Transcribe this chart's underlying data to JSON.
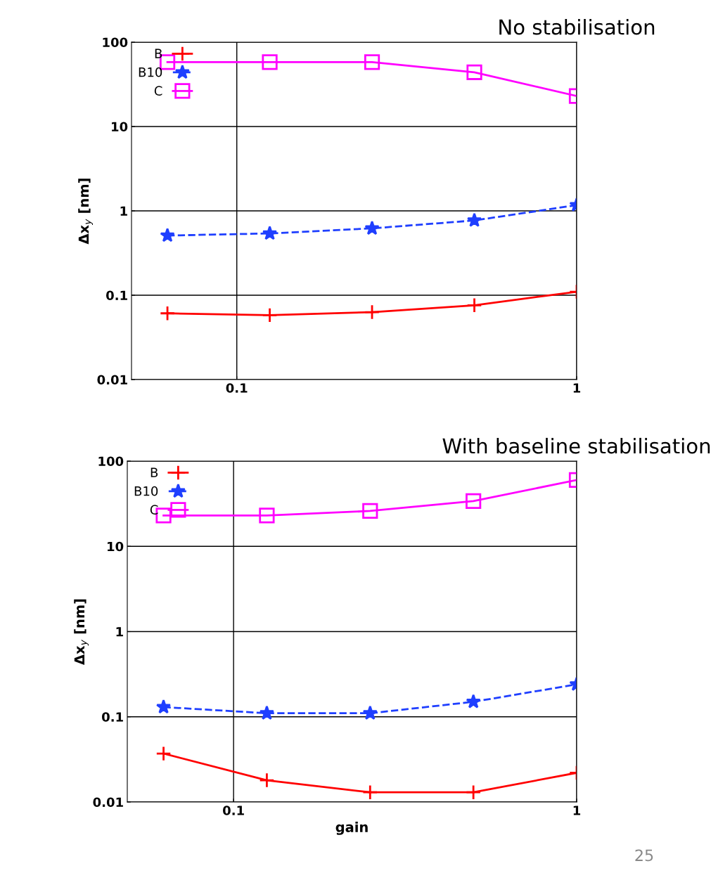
{
  "chart_data": [
    {
      "type": "line",
      "title": "No stabilisation",
      "ylabel": "Δx$_{y}$ [nm]",
      "log": "xy",
      "x": [
        0.0625,
        0.125,
        0.25,
        0.5,
        1
      ],
      "xlim": [
        0.049,
        1
      ],
      "xticks": [
        0.1,
        1
      ],
      "ylim": [
        0.01,
        100
      ],
      "yticks": [
        0.01,
        0.1,
        1,
        10,
        100
      ],
      "grid": true,
      "legend": "top left",
      "series": [
        {
          "name": "B",
          "color": "#ff0000",
          "marker": "cross",
          "line_style": "solid",
          "values": [
            0.061,
            0.058,
            0.063,
            0.076,
            0.11
          ]
        },
        {
          "name": "B10",
          "color": "#1f3fff",
          "marker": "star",
          "line_style": "dashed",
          "values": [
            0.51,
            0.54,
            0.62,
            0.77,
            1.17
          ]
        },
        {
          "name": "C",
          "color": "#ff00ff",
          "marker": "square",
          "line_style": "solid",
          "values": [
            58,
            58,
            58,
            44,
            23
          ]
        }
      ]
    },
    {
      "type": "line",
      "title": "With baseline stabilisation",
      "xlabel": "gain",
      "ylabel": "Δx$_{y}$ [nm]",
      "log": "xy",
      "x": [
        0.0625,
        0.125,
        0.25,
        0.5,
        1
      ],
      "xlim": [
        0.049,
        1
      ],
      "xticks": [
        0.1,
        1
      ],
      "ylim": [
        0.01,
        100
      ],
      "yticks": [
        0.01,
        0.1,
        1,
        10,
        100
      ],
      "grid": true,
      "legend": "top left",
      "annotations": [
        "25"
      ],
      "series": [
        {
          "name": "B",
          "color": "#ff0000",
          "marker": "cross",
          "line_style": "solid",
          "values": [
            0.037,
            0.018,
            0.013,
            0.013,
            0.022
          ]
        },
        {
          "name": "B10",
          "color": "#1f3fff",
          "marker": "star",
          "line_style": "dashed",
          "values": [
            0.13,
            0.11,
            0.11,
            0.15,
            0.24
          ]
        },
        {
          "name": "C",
          "color": "#ff00ff",
          "marker": "square",
          "line_style": "solid",
          "values": [
            23,
            23,
            26,
            34,
            60
          ]
        }
      ]
    }
  ]
}
